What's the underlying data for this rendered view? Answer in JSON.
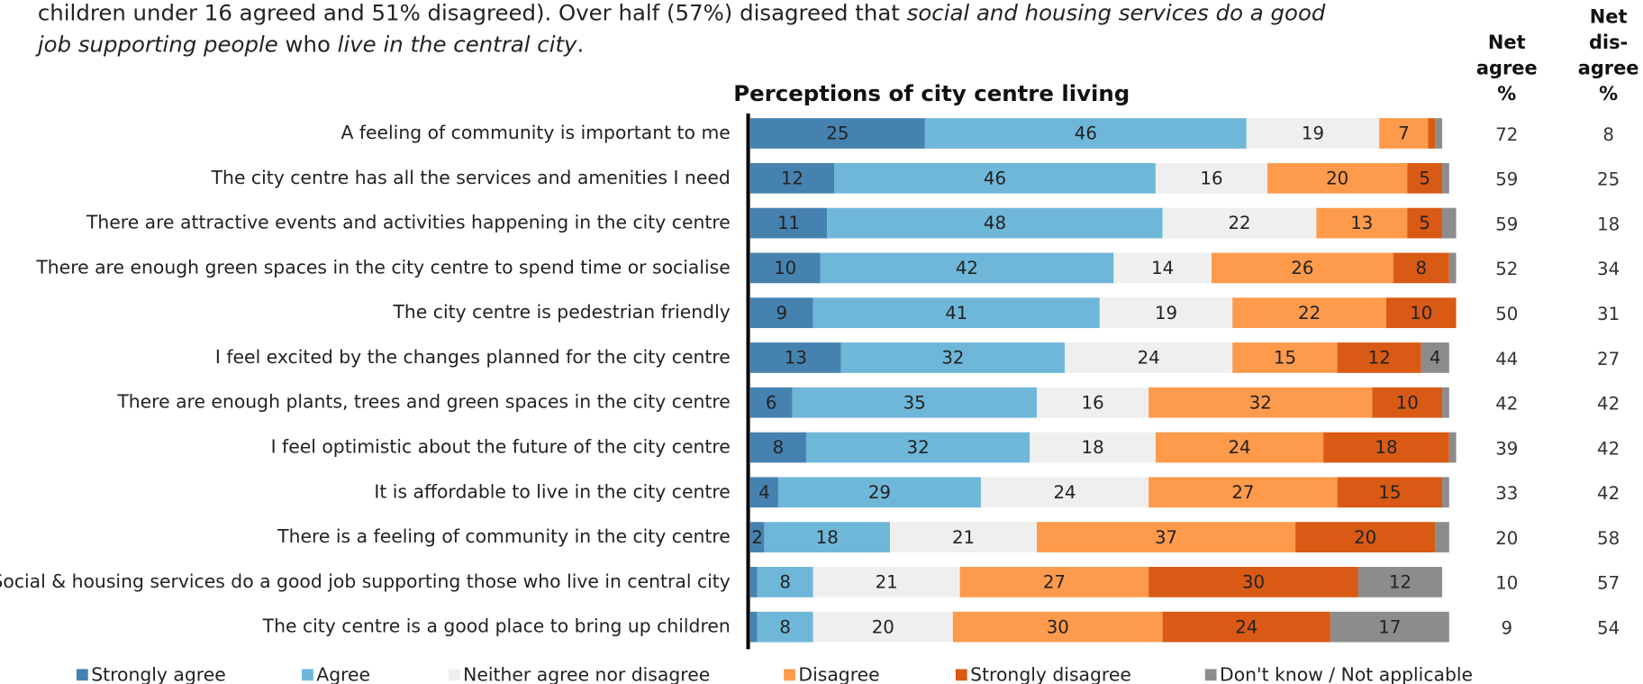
{
  "intro": [
    [
      {
        "text": "children under 16 agreed and 51% disagreed). Over half (57%) disagreed that ",
        "italic": false
      },
      {
        "text": "social and housing services do a good",
        "italic": true
      }
    ],
    [
      {
        "text": "job supporting people",
        "italic": true
      },
      {
        "text": " who ",
        "italic": false
      },
      {
        "text": "live in the central city",
        "italic": true
      },
      {
        "text": ".",
        "italic": false
      }
    ]
  ],
  "chart_data": {
    "type": "bar",
    "orientation": "horizontal",
    "stacked": true,
    "title": "Perceptions of city centre living",
    "categories": [
      "A feeling of community is important to me",
      "The city centre has all the services and amenities I need",
      "There are attractive events and activities happening in the city centre",
      "There are enough green spaces in the city centre to spend time or socialise",
      "The city centre is pedestrian friendly",
      "I feel excited by the changes planned for the city centre",
      "There are enough plants, trees and green spaces in the city centre",
      "I feel optimistic about the future of the city centre",
      "It is affordable to live in the city centre",
      "There is a feeling of community in the city centre",
      "Social & housing services do a good job supporting those who live in central city",
      "The city centre is a good place to bring up children"
    ],
    "xlim": [
      0,
      100
    ],
    "series": [
      {
        "name": "Strongly agree",
        "color": "#4682b0",
        "values": [
          25,
          12,
          11,
          10,
          9,
          13,
          6,
          8,
          4,
          2,
          1,
          1
        ],
        "value_labels": [
          "25",
          "12",
          "11",
          "10",
          "9",
          "13",
          "6",
          "8",
          "4",
          "2",
          null,
          null
        ]
      },
      {
        "name": "Agree",
        "color": "#6fb7d9",
        "values": [
          46,
          46,
          48,
          42,
          41,
          32,
          35,
          32,
          29,
          18,
          8,
          8
        ]
      },
      {
        "name": "Neither agree nor disagree",
        "color": "#efefef",
        "values": [
          19,
          16,
          22,
          14,
          19,
          24,
          16,
          18,
          24,
          21,
          21,
          20
        ]
      },
      {
        "name": "Disagree",
        "color": "#fd9a4b",
        "values": [
          7,
          20,
          13,
          26,
          22,
          15,
          32,
          24,
          27,
          37,
          27,
          30
        ]
      },
      {
        "name": "Strongly disagree",
        "color": "#d95a14",
        "values": [
          1,
          5,
          5,
          8,
          10,
          12,
          10,
          18,
          15,
          20,
          30,
          24
        ],
        "value_labels": [
          null,
          "5",
          "5",
          "8",
          "10",
          "12",
          "10",
          "18",
          "15",
          "20",
          "30",
          "24"
        ]
      },
      {
        "name": "Don't know / Not applicable",
        "color": "#8c8c8c",
        "values": [
          1,
          1,
          2,
          1,
          0,
          4,
          1,
          1,
          1,
          2,
          12,
          17
        ],
        "value_labels": [
          null,
          null,
          null,
          null,
          null,
          "4",
          null,
          null,
          null,
          null,
          "12",
          "17"
        ]
      }
    ],
    "columns": [
      {
        "header": [
          "Net",
          "agree",
          "%"
        ],
        "values": [
          72,
          59,
          59,
          52,
          50,
          44,
          42,
          39,
          33,
          20,
          10,
          9
        ]
      },
      {
        "header": [
          "Net",
          "dis-",
          "agree",
          "%"
        ],
        "values": [
          8,
          25,
          18,
          34,
          31,
          27,
          42,
          42,
          42,
          58,
          57,
          54
        ]
      }
    ]
  }
}
